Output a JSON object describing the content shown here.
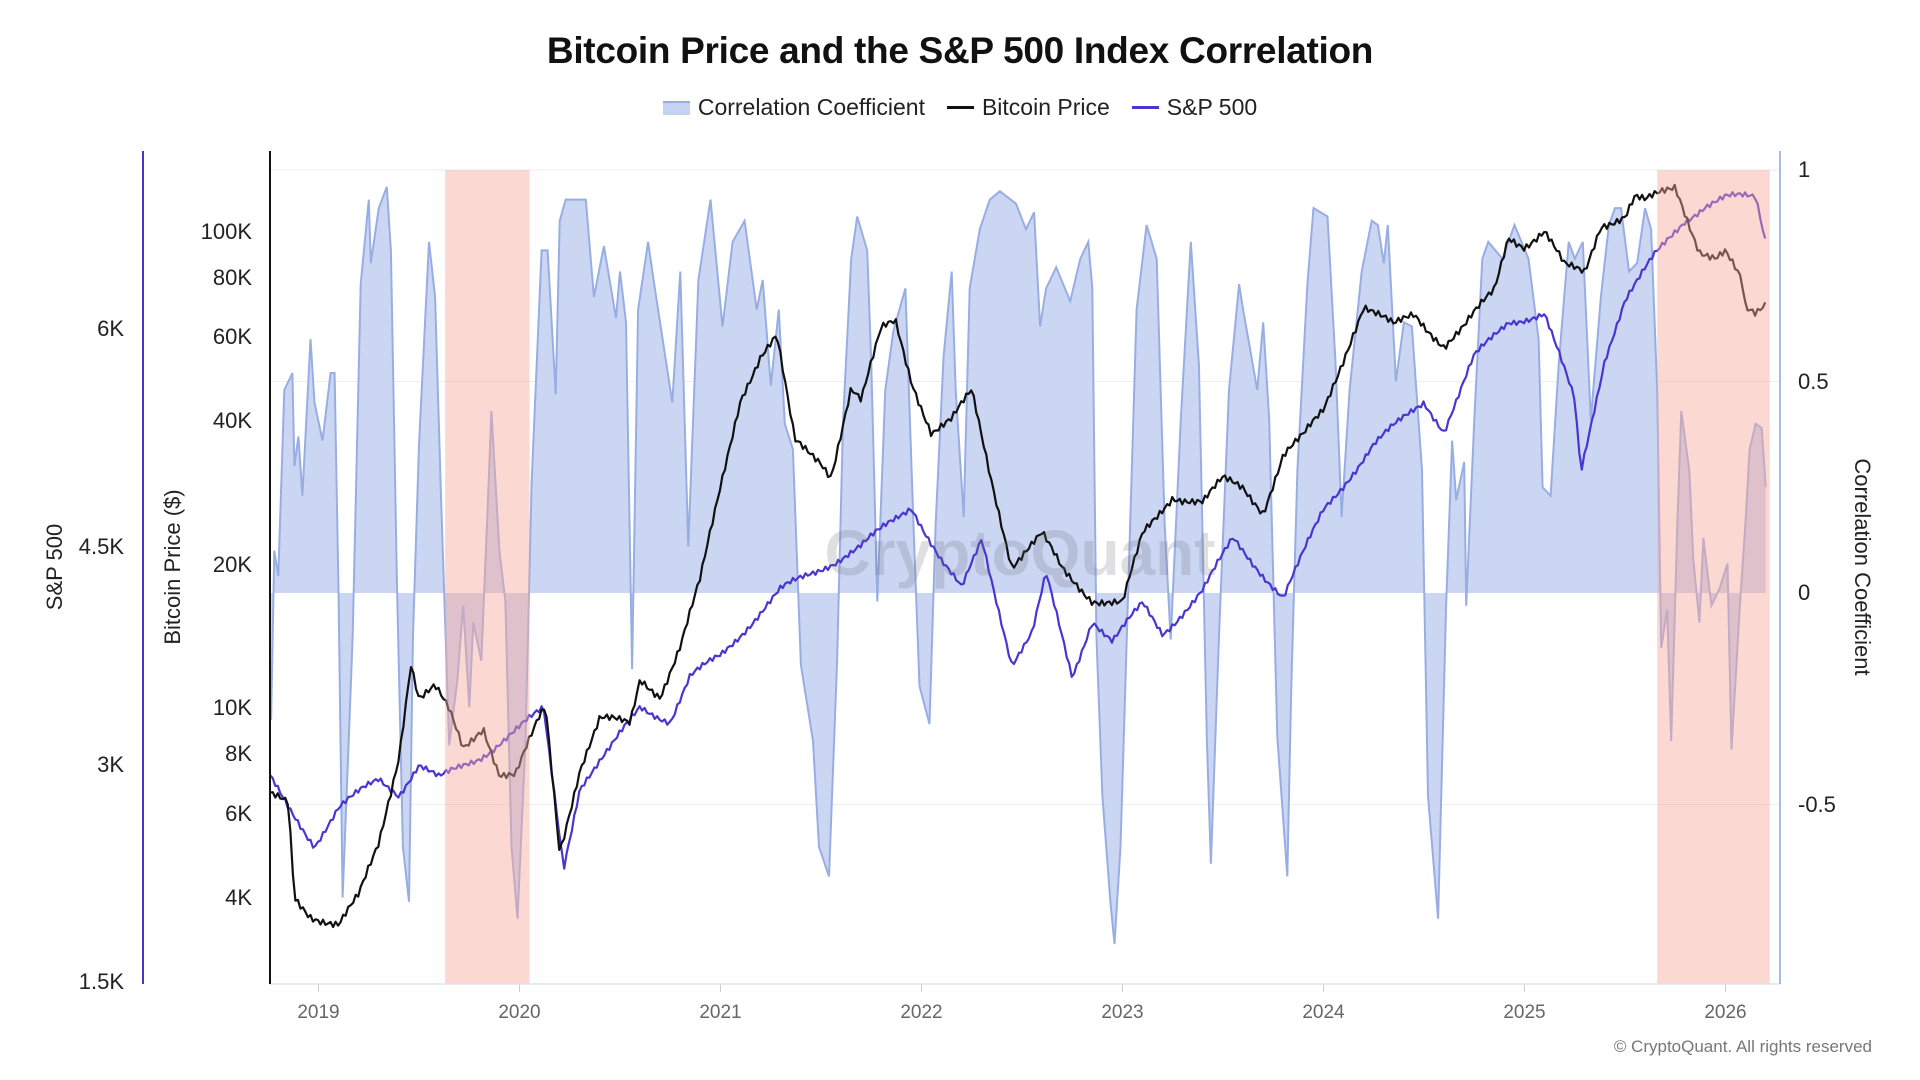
{
  "chart_data": {
    "type": "line",
    "title": "Bitcoin Price and the S&P 500 Index Correlation",
    "legend": {
      "placement": "top-center",
      "items": [
        {
          "label": "Correlation Coefficient",
          "kind": "area",
          "color": "#c5d2f2"
        },
        {
          "label": "Bitcoin Price",
          "kind": "line",
          "color": "#111111"
        },
        {
          "label": "S&P 500",
          "kind": "line",
          "color": "#4b35d0"
        }
      ]
    },
    "watermark": "CryptoQuant",
    "footer": "© CryptoQuant. All rights reserved",
    "x_axis": {
      "type": "date",
      "ticks": [
        "2019",
        "2020",
        "2021",
        "2022",
        "2023",
        "2024",
        "2025",
        "2026"
      ],
      "range": [
        "2018-10",
        "2026-03"
      ]
    },
    "y_axes": {
      "sp500": {
        "label": "S&P 500",
        "scale": "linear",
        "position": "far-left",
        "ticks": [
          {
            "v": 6000,
            "t": "6K"
          },
          {
            "v": 4500,
            "t": "4.5K"
          },
          {
            "v": 3000,
            "t": "3K"
          },
          {
            "v": 1500,
            "t": "1.5K"
          }
        ],
        "range": [
          1500,
          7200
        ],
        "color": "#4b35d0"
      },
      "btc": {
        "label": "Bitcoin Price ($)",
        "scale": "log",
        "position": "left",
        "ticks": [
          {
            "v": 100000,
            "t": "100K"
          },
          {
            "v": 80000,
            "t": "80K"
          },
          {
            "v": 60000,
            "t": "60K"
          },
          {
            "v": 40000,
            "t": "40K"
          },
          {
            "v": 20000,
            "t": "20K"
          },
          {
            "v": 10000,
            "t": "10K"
          },
          {
            "v": 8000,
            "t": "8K"
          },
          {
            "v": 6000,
            "t": "6K"
          },
          {
            "v": 4000,
            "t": "4K"
          }
        ],
        "range": [
          2640,
          148000
        ]
      },
      "corr": {
        "label": "Correlation Coefficient",
        "scale": "linear",
        "position": "right",
        "ticks": [
          {
            "v": 1,
            "t": "1"
          },
          {
            "v": 0.5,
            "t": "0.5"
          },
          {
            "v": 0,
            "t": "0"
          },
          {
            "v": -0.5,
            "t": "-0.5"
          }
        ],
        "range": [
          -0.93,
          1.05
        ]
      }
    },
    "grid": true,
    "highlight_periods": [
      {
        "from": 2019.63,
        "to": 2020.05,
        "color": "#f9a89c"
      },
      {
        "from": 2025.66,
        "to": 2026.22,
        "color": "#f9a89c"
      }
    ],
    "series": [
      {
        "name": "Correlation Coefficient",
        "axis": "corr",
        "x": [
          2018.764,
          2018.78,
          2018.8,
          2018.83,
          2018.87,
          2018.88,
          2018.9,
          2018.92,
          2018.96,
          2018.98,
          2019.02,
          2019.06,
          2019.08,
          2019.1,
          2019.12,
          2019.15,
          2019.17,
          2019.21,
          2019.25,
          2019.26,
          2019.3,
          2019.34,
          2019.36,
          2019.39,
          2019.42,
          2019.45,
          2019.47,
          2019.5,
          2019.55,
          2019.58,
          2019.61,
          2019.65,
          2019.69,
          2019.72,
          2019.75,
          2019.77,
          2019.81,
          2019.84,
          2019.86,
          2019.9,
          2019.93,
          2019.96,
          2019.99,
          2020.03,
          2020.06,
          2020.11,
          2020.14,
          2020.18,
          2020.2,
          2020.23,
          2020.33,
          2020.37,
          2020.42,
          2020.48,
          2020.5,
          2020.53,
          2020.56,
          2020.59,
          2020.64,
          2020.67,
          2020.76,
          2020.8,
          2020.84,
          2020.89,
          2020.95,
          2021.01,
          2021.06,
          2021.12,
          2021.18,
          2021.21,
          2021.25,
          2021.29,
          2021.32,
          2021.36,
          2021.4,
          2021.46,
          2021.49,
          2021.54,
          2021.58,
          2021.61,
          2021.65,
          2021.68,
          2021.73,
          2021.75,
          2021.78,
          2021.82,
          2021.86,
          2021.92,
          2021.96,
          2021.99,
          2022.04,
          2022.07,
          2022.11,
          2022.15,
          2022.17,
          2022.21,
          2022.24,
          2022.29,
          2022.34,
          2022.39,
          2022.47,
          2022.52,
          2022.56,
          2022.59,
          2022.62,
          2022.67,
          2022.74,
          2022.79,
          2022.83,
          2022.85,
          2022.87,
          2022.9,
          2022.94,
          2022.96,
          2022.99,
          2023.03,
          2023.07,
          2023.12,
          2023.17,
          2023.21,
          2023.24,
          2023.29,
          2023.34,
          2023.38,
          2023.42,
          2023.44,
          2023.48,
          2023.53,
          2023.58,
          2023.6,
          2023.63,
          2023.67,
          2023.7,
          2023.73,
          2023.77,
          2023.82,
          2023.84,
          2023.87,
          2023.92,
          2023.95,
          2024.02,
          2024.06,
          2024.09,
          2024.13,
          2024.19,
          2024.24,
          2024.27,
          2024.3,
          2024.32,
          2024.36,
          2024.4,
          2024.44,
          2024.49,
          2024.52,
          2024.57,
          2024.61,
          2024.64,
          2024.66,
          2024.7,
          2024.71,
          2024.75,
          2024.79,
          2024.82,
          2024.89,
          2024.95,
          2025.02,
          2025.07,
          2025.09,
          2025.13,
          2025.17,
          2025.22,
          2025.25,
          2025.29,
          2025.33,
          2025.38,
          2025.42,
          2025.45,
          2025.48,
          2025.52,
          2025.56,
          2025.6,
          2025.63,
          2025.66,
          2025.68,
          2025.71,
          2025.73,
          2025.76,
          2025.78,
          2025.82,
          2025.84,
          2025.87,
          2025.89,
          2025.93,
          2025.97,
          2026.01,
          2026.03,
          2026.07,
          2026.1,
          2026.12,
          2026.15,
          2026.18,
          2026.2
        ],
        "values": [
          -0.3,
          0.1,
          0.04,
          0.48,
          0.52,
          0.3,
          0.37,
          0.23,
          0.6,
          0.45,
          0.36,
          0.52,
          0.52,
          -0.01,
          -0.72,
          -0.35,
          -0.1,
          0.73,
          0.93,
          0.78,
          0.91,
          0.96,
          0.81,
          0.03,
          -0.6,
          -0.73,
          -0.1,
          0.35,
          0.83,
          0.7,
          0.22,
          -0.36,
          -0.21,
          -0.03,
          -0.27,
          -0.07,
          -0.16,
          0.18,
          0.43,
          0.1,
          -0.02,
          -0.6,
          -0.77,
          -0.35,
          0.26,
          0.81,
          0.81,
          0.47,
          0.88,
          0.93,
          0.93,
          0.7,
          0.82,
          0.65,
          0.76,
          0.64,
          -0.18,
          0.67,
          0.83,
          0.73,
          0.45,
          0.76,
          0.11,
          0.74,
          0.93,
          0.63,
          0.83,
          0.88,
          0.67,
          0.74,
          0.49,
          0.67,
          0.4,
          0.34,
          -0.17,
          -0.35,
          -0.6,
          -0.67,
          -0.16,
          0.41,
          0.79,
          0.89,
          0.81,
          0.54,
          -0.02,
          0.48,
          0.62,
          0.72,
          0.16,
          -0.22,
          -0.31,
          0.16,
          0.56,
          0.76,
          0.48,
          0.18,
          0.72,
          0.86,
          0.93,
          0.95,
          0.92,
          0.86,
          0.9,
          0.63,
          0.72,
          0.77,
          0.69,
          0.79,
          0.83,
          0.72,
          -0.1,
          -0.48,
          -0.73,
          -0.83,
          -0.6,
          0.03,
          0.67,
          0.87,
          0.79,
          0.16,
          -0.11,
          0.41,
          0.83,
          0.54,
          -0.35,
          -0.64,
          -0.1,
          0.48,
          0.73,
          0.67,
          0.59,
          0.48,
          0.64,
          0.41,
          -0.34,
          -0.67,
          -0.22,
          0.29,
          0.73,
          0.91,
          0.89,
          0.54,
          0.18,
          0.48,
          0.76,
          0.88,
          0.87,
          0.78,
          0.87,
          0.5,
          0.64,
          0.63,
          0.29,
          -0.48,
          -0.77,
          -0.03,
          0.36,
          0.22,
          0.31,
          -0.03,
          0.41,
          0.79,
          0.83,
          0.79,
          0.87,
          0.79,
          0.6,
          0.25,
          0.23,
          0.54,
          0.83,
          0.79,
          0.83,
          0.41,
          0.7,
          0.87,
          0.91,
          0.91,
          0.76,
          0.78,
          0.91,
          0.86,
          0.48,
          -0.13,
          -0.04,
          -0.35,
          0.16,
          0.43,
          0.29,
          0.08,
          -0.07,
          0.13,
          -0.03,
          0.01,
          0.07,
          -0.37,
          -0.04,
          0.17,
          0.34,
          0.4,
          0.39,
          0.25
        ]
      },
      {
        "name": "Bitcoin Price",
        "axis": "btc",
        "x": [
          2018.76,
          2018.85,
          2018.88,
          2018.96,
          2019.1,
          2019.2,
          2019.3,
          2019.4,
          2019.46,
          2019.5,
          2019.58,
          2019.65,
          2019.72,
          2019.82,
          2019.9,
          2019.98,
          2020.1,
          2020.13,
          2020.2,
          2020.3,
          2020.4,
          2020.55,
          2020.6,
          2020.7,
          2020.8,
          2020.9,
          2021.0,
          2021.1,
          2021.2,
          2021.28,
          2021.37,
          2021.5,
          2021.55,
          2021.65,
          2021.7,
          2021.8,
          2021.87,
          2021.95,
          2022.05,
          2022.15,
          2022.25,
          2022.35,
          2022.45,
          2022.6,
          2022.7,
          2022.85,
          2023.0,
          2023.1,
          2023.25,
          2023.4,
          2023.5,
          2023.6,
          2023.7,
          2023.8,
          2023.9,
          2024.0,
          2024.15,
          2024.2,
          2024.35,
          2024.45,
          2024.6,
          2024.7,
          2024.85,
          2024.92,
          2025.0,
          2025.1,
          2025.2,
          2025.3,
          2025.38,
          2025.5,
          2025.55,
          2025.6,
          2025.75,
          2025.8,
          2025.87,
          2025.95,
          2026.0,
          2026.08,
          2026.1,
          2026.15,
          2026.2
        ],
        "values": [
          6500,
          6300,
          4000,
          3700,
          3500,
          4000,
          5200,
          8000,
          12500,
          10500,
          11000,
          9800,
          8200,
          9200,
          7300,
          7200,
          9500,
          10000,
          5000,
          7500,
          9500,
          9200,
          11500,
          10700,
          13500,
          18500,
          29000,
          45000,
          55000,
          60000,
          36000,
          33000,
          31000,
          47000,
          44000,
          62000,
          65000,
          49000,
          38000,
          40000,
          46000,
          30000,
          20000,
          23000,
          19500,
          17000,
          16500,
          23000,
          28000,
          27000,
          30000,
          29000,
          26000,
          34000,
          37000,
          42000,
          62000,
          70000,
          63000,
          67000,
          58000,
          63000,
          75000,
          98000,
          94000,
          100000,
          84000,
          82000,
          104000,
          108000,
          118000,
          115000,
          124000,
          110000,
          92000,
          88000,
          90000,
          78000,
          68000,
          67000,
          71000
        ]
      },
      {
        "name": "S&P 500",
        "axis": "sp500",
        "x": [
          2018.76,
          2018.85,
          2018.98,
          2019.1,
          2019.3,
          2019.4,
          2019.5,
          2019.6,
          2019.8,
          2020.0,
          2020.12,
          2020.22,
          2020.3,
          2020.45,
          2020.6,
          2020.75,
          2020.85,
          2021.0,
          2021.3,
          2021.5,
          2021.7,
          2021.95,
          2022.1,
          2022.2,
          2022.3,
          2022.45,
          2022.55,
          2022.62,
          2022.75,
          2022.85,
          2022.95,
          2023.1,
          2023.2,
          2023.4,
          2023.55,
          2023.8,
          2024.0,
          2024.25,
          2024.5,
          2024.6,
          2024.75,
          2024.92,
          2025.1,
          2025.25,
          2025.28,
          2025.4,
          2025.5,
          2025.65,
          2025.8,
          2025.9,
          2026.0,
          2026.15,
          2026.2
        ],
        "values": [
          2900,
          2700,
          2450,
          2700,
          2900,
          2800,
          3000,
          2900,
          3050,
          3250,
          3380,
          2300,
          2850,
          3100,
          3400,
          3300,
          3600,
          3750,
          4200,
          4350,
          4500,
          4780,
          4400,
          4200,
          4550,
          3700,
          3900,
          4300,
          3600,
          4000,
          3850,
          4100,
          3900,
          4200,
          4550,
          4150,
          4750,
          5200,
          5500,
          5300,
          5800,
          6050,
          6100,
          5500,
          5000,
          5800,
          6200,
          6500,
          6750,
          6850,
          6900,
          6900,
          6600
        ]
      }
    ]
  }
}
